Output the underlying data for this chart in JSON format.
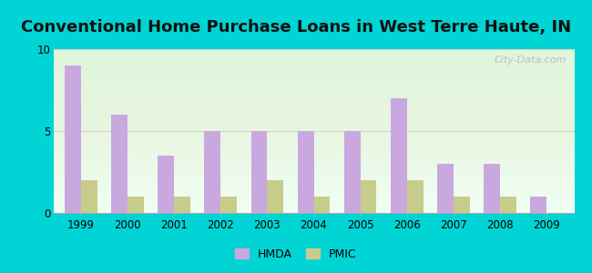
{
  "title": "Conventional Home Purchase Loans in West Terre Haute, IN",
  "years": [
    1999,
    2000,
    2001,
    2002,
    2003,
    2004,
    2005,
    2006,
    2007,
    2008,
    2009
  ],
  "hmda": [
    9,
    6,
    3.5,
    5,
    5,
    5,
    5,
    7,
    3,
    3,
    1
  ],
  "pmic": [
    2,
    1,
    1,
    1,
    2,
    1,
    2,
    2,
    1,
    1,
    0
  ],
  "hmda_color": "#c9a8e0",
  "pmic_color": "#c8cc8a",
  "background_outer": "#00d4d4",
  "ylim": [
    0,
    10
  ],
  "yticks": [
    0,
    5,
    10
  ],
  "bar_width": 0.35,
  "watermark": "City-Data.com",
  "legend_hmda": "HMDA",
  "legend_pmic": "PMIC",
  "title_fontsize": 13,
  "tick_fontsize": 8.5
}
